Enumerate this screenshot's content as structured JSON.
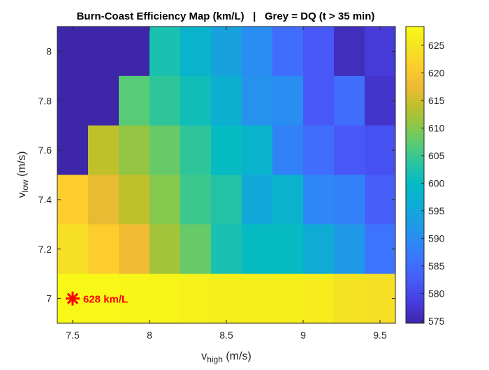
{
  "chart_data": {
    "type": "heatmap",
    "title": "Burn-Coast Efficiency Map (km/L)   |   Grey = DQ (t > 35 min)",
    "xlabel_main": "v",
    "xlabel_sub": "high",
    "xlabel_unit": " (m/s)",
    "ylabel_main": "v",
    "ylabel_sub": "low",
    "ylabel_unit": " (m/s)",
    "x": [
      7.5,
      7.7,
      7.9,
      8.1,
      8.3,
      8.5,
      8.7,
      8.9,
      9.1,
      9.3,
      9.5
    ],
    "y": [
      8.0,
      7.8,
      7.6,
      7.4,
      7.2,
      7.0
    ],
    "values": [
      [
        null,
        null,
        null,
        602,
        598,
        594,
        590,
        585,
        582,
        576,
        578
      ],
      [
        null,
        null,
        607,
        604,
        601,
        597,
        591,
        590,
        582,
        585,
        577
      ],
      [
        null,
        614,
        611,
        608,
        604,
        600,
        598,
        588,
        585,
        582,
        581
      ],
      [
        621,
        617,
        614,
        610,
        605,
        603,
        595,
        598,
        589,
        588,
        583
      ],
      [
        624,
        621,
        618,
        612,
        608,
        602,
        600,
        600,
        596,
        592,
        586
      ],
      [
        628,
        627.8,
        627.5,
        627.3,
        626.8,
        626.5,
        626.3,
        626.5,
        626,
        624.5,
        624
      ]
    ],
    "dq_value": null,
    "xlim": [
      7.4,
      9.6
    ],
    "ylim": [
      6.9,
      8.1
    ],
    "xticks": [
      "7.5",
      "8",
      "8.5",
      "9",
      "9.5"
    ],
    "yticks": [
      "7",
      "7.2",
      "7.4",
      "7.6",
      "7.8",
      "8"
    ],
    "colormap": "parula",
    "clim": [
      574.6,
      628.4
    ],
    "colorbar_ticks": [
      "575",
      "580",
      "585",
      "590",
      "595",
      "600",
      "605",
      "610",
      "615",
      "620",
      "625"
    ],
    "colorbar_placement": "right",
    "best_point": {
      "x": 7.5,
      "y": 7.0,
      "label": "628 km/L",
      "color": "#FF0000",
      "marker": "asterisk"
    },
    "grid": false
  }
}
